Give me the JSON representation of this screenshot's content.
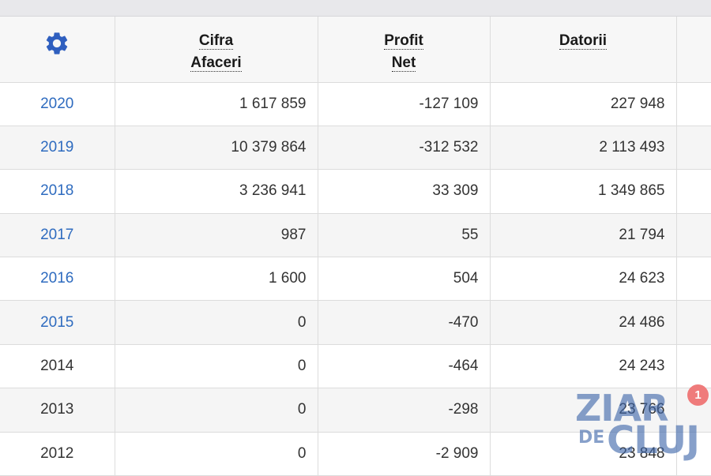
{
  "header": {
    "settings_icon": "gear-icon",
    "cifra_line1": "Cifra",
    "cifra_line2": "Afaceri",
    "profit_line1": "Profit",
    "profit_line2": "Net",
    "datorii": "Datorii"
  },
  "rows": [
    {
      "year": "2020",
      "cifra_afaceri": "1 617 859",
      "profit_net": "-127 109",
      "datorii": "227 948",
      "year_is_link": true
    },
    {
      "year": "2019",
      "cifra_afaceri": "10 379 864",
      "profit_net": "-312 532",
      "datorii": "2 113 493",
      "year_is_link": true
    },
    {
      "year": "2018",
      "cifra_afaceri": "3 236 941",
      "profit_net": "33 309",
      "datorii": "1 349 865",
      "year_is_link": true
    },
    {
      "year": "2017",
      "cifra_afaceri": "987",
      "profit_net": "55",
      "datorii": "21 794",
      "year_is_link": true
    },
    {
      "year": "2016",
      "cifra_afaceri": "1 600",
      "profit_net": "504",
      "datorii": "24 623",
      "year_is_link": true
    },
    {
      "year": "2015",
      "cifra_afaceri": "0",
      "profit_net": "-470",
      "datorii": "24 486",
      "year_is_link": true
    },
    {
      "year": "2014",
      "cifra_afaceri": "0",
      "profit_net": "-464",
      "datorii": "24 243",
      "year_is_link": false
    },
    {
      "year": "2013",
      "cifra_afaceri": "0",
      "profit_net": "-298",
      "datorii": "23 766",
      "year_is_link": false
    },
    {
      "year": "2012",
      "cifra_afaceri": "0",
      "profit_net": "-2 909",
      "datorii": "23 848",
      "year_is_link": false
    }
  ],
  "watermark": {
    "line1": "ZIAR",
    "line2a": "DE",
    "line2b": "CLUJ"
  },
  "notification_badge": "1",
  "colors": {
    "link_blue": "#2e6bbf",
    "gear_blue": "#2f5fbf",
    "badge_red": "#ef7b7b"
  }
}
